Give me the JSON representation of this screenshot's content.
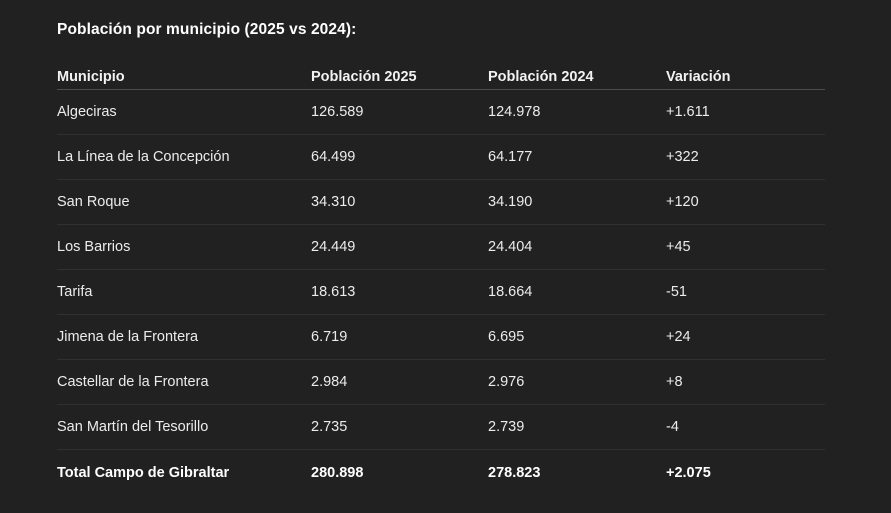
{
  "title": "Población por municipio (2025 vs 2024):",
  "table": {
    "headers": {
      "municipio": "Municipio",
      "pob2025": "Población 2025",
      "pob2024": "Población 2024",
      "variacion": "Variación"
    },
    "rows": [
      {
        "municipio": "Algeciras",
        "pob2025": "126.589",
        "pob2024": "124.978",
        "variacion": "+1.611",
        "is_total": false
      },
      {
        "municipio": "La Línea de la Concepción",
        "pob2025": "64.499",
        "pob2024": "64.177",
        "variacion": "+322",
        "is_total": false
      },
      {
        "municipio": "San Roque",
        "pob2025": "34.310",
        "pob2024": "34.190",
        "variacion": "+120",
        "is_total": false
      },
      {
        "municipio": "Los Barrios",
        "pob2025": "24.449",
        "pob2024": "24.404",
        "variacion": "+45",
        "is_total": false
      },
      {
        "municipio": "Tarifa",
        "pob2025": "18.613",
        "pob2024": "18.664",
        "variacion": "-51",
        "is_total": false
      },
      {
        "municipio": "Jimena de la Frontera",
        "pob2025": "6.719",
        "pob2024": "6.695",
        "variacion": "+24",
        "is_total": false
      },
      {
        "municipio": "Castellar de la Frontera",
        "pob2025": "2.984",
        "pob2024": "2.976",
        "variacion": "+8",
        "is_total": false
      },
      {
        "municipio": "San Martín del Tesorillo",
        "pob2025": "2.735",
        "pob2024": "2.739",
        "variacion": "-4",
        "is_total": false
      },
      {
        "municipio": "Total Campo de Gibraltar",
        "pob2025": "280.898",
        "pob2024": "278.823",
        "variacion": "+2.075",
        "is_total": true
      }
    ]
  },
  "colors": {
    "background": "#212121",
    "text": "#ececec",
    "heading": "#ffffff",
    "header_divider": "#4d4d4d",
    "row_divider": "#303030"
  }
}
